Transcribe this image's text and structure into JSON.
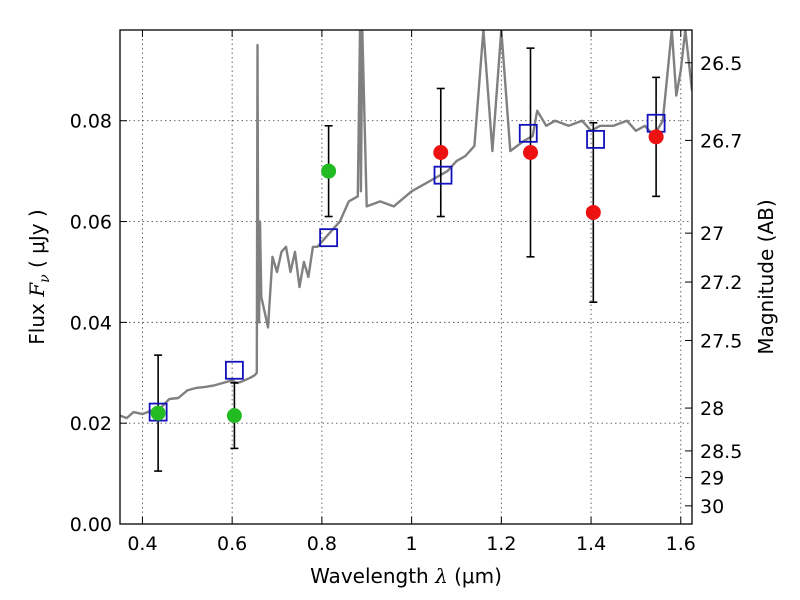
{
  "chart_data": {
    "type": "scatter",
    "xlabel": "Wavelength  λ (μm)",
    "xlabel_parts": {
      "prefix": "Wavelength ",
      "var": "λ",
      "unit": "(μm)"
    },
    "ylabel": "Flux  Fν ( μJy )",
    "ylabel_parts": {
      "prefix": "Flux  ",
      "var": "F",
      "sub": "ν",
      "unit": "( μJy )"
    },
    "y2label": "Magnitude (AB)",
    "xlim": [
      0.35,
      1.625
    ],
    "ylim": [
      0.0,
      0.098
    ],
    "grid": true,
    "x_ticks": [
      0.4,
      0.6,
      0.8,
      1.0,
      1.2,
      1.4,
      1.6
    ],
    "x_tick_labels": [
      "0.4",
      "0.6",
      "0.8",
      "1",
      "1.2",
      "1.4",
      "1.6"
    ],
    "y_ticks": [
      0.0,
      0.02,
      0.04,
      0.06,
      0.08
    ],
    "y_tick_labels": [
      "0.00",
      "0.02",
      "0.04",
      "0.06",
      "0.08"
    ],
    "mag_ticks": [
      {
        "label": "26.5",
        "flux": 0.0915
      },
      {
        "label": "26.7",
        "flux": 0.0761
      },
      {
        "label": "27",
        "flux": 0.0577
      },
      {
        "label": "27.2",
        "flux": 0.048
      },
      {
        "label": "27.5",
        "flux": 0.0364
      },
      {
        "label": "28",
        "flux": 0.023
      },
      {
        "label": "28.5",
        "flux": 0.0145
      },
      {
        "label": "29",
        "flux": 0.0092
      },
      {
        "label": "30",
        "flux": 0.0036
      }
    ],
    "colors": {
      "model": "#808080",
      "green": "#22bb22",
      "red": "#ee1111",
      "square": "#1111bb",
      "errorbar": "#000000",
      "grid": "#555555"
    },
    "series": [
      {
        "name": "model spectrum",
        "kind": "line",
        "x": [
          0.35,
          0.365,
          0.38,
          0.4,
          0.42,
          0.44,
          0.46,
          0.48,
          0.5,
          0.52,
          0.54,
          0.56,
          0.58,
          0.6,
          0.61,
          0.62,
          0.64,
          0.65,
          0.655,
          0.6565,
          0.658,
          0.66,
          0.662,
          0.665,
          0.67,
          0.68,
          0.69,
          0.7,
          0.71,
          0.72,
          0.73,
          0.74,
          0.75,
          0.76,
          0.77,
          0.78,
          0.79,
          0.8,
          0.82,
          0.84,
          0.86,
          0.88,
          0.885,
          0.887,
          0.89,
          0.9,
          0.93,
          0.96,
          1.0,
          1.04,
          1.08,
          1.1,
          1.12,
          1.14,
          1.16,
          1.18,
          1.2,
          1.22,
          1.25,
          1.27,
          1.28,
          1.3,
          1.32,
          1.35,
          1.38,
          1.4,
          1.42,
          1.45,
          1.48,
          1.5,
          1.52,
          1.54,
          1.56,
          1.58,
          1.59,
          1.6,
          1.61,
          1.625
        ],
        "y": [
          0.0215,
          0.021,
          0.0222,
          0.0218,
          0.0225,
          0.023,
          0.0248,
          0.025,
          0.0265,
          0.027,
          0.0272,
          0.0275,
          0.028,
          0.0285,
          0.028,
          0.0282,
          0.029,
          0.0295,
          0.03,
          0.095,
          0.05,
          0.04,
          0.06,
          0.045,
          0.043,
          0.039,
          0.053,
          0.05,
          0.054,
          0.055,
          0.05,
          0.054,
          0.047,
          0.052,
          0.049,
          0.055,
          0.055,
          0.056,
          0.058,
          0.06,
          0.064,
          0.065,
          0.098,
          0.066,
          0.098,
          0.063,
          0.064,
          0.063,
          0.066,
          0.068,
          0.07,
          0.072,
          0.073,
          0.075,
          0.098,
          0.074,
          0.098,
          0.074,
          0.076,
          0.077,
          0.082,
          0.079,
          0.08,
          0.079,
          0.08,
          0.078,
          0.079,
          0.079,
          0.08,
          0.078,
          0.079,
          0.077,
          0.08,
          0.098,
          0.085,
          0.09,
          0.098,
          0.086
        ]
      },
      {
        "name": "green points",
        "kind": "points",
        "x": [
          0.435,
          0.605,
          0.815
        ],
        "y": [
          0.022,
          0.0215,
          0.07
        ],
        "err_low": [
          0.0115,
          0.0065,
          0.009
        ],
        "err_high": [
          0.0115,
          0.0065,
          0.009
        ]
      },
      {
        "name": "red points",
        "kind": "points",
        "x": [
          1.065,
          1.265,
          1.405,
          1.545
        ],
        "y": [
          0.0737,
          0.0737,
          0.0618,
          0.0768
        ],
        "err_low": [
          0.0127,
          0.0207,
          0.0178,
          0.0118
        ],
        "err_high": [
          0.0127,
          0.0207,
          0.0178,
          0.0118
        ]
      },
      {
        "name": "model photometry",
        "kind": "squares",
        "x": [
          0.435,
          0.605,
          0.815,
          1.07,
          1.26,
          1.41,
          1.545
        ],
        "y": [
          0.0222,
          0.0305,
          0.0568,
          0.0692,
          0.0775,
          0.0763,
          0.0795
        ]
      }
    ]
  }
}
